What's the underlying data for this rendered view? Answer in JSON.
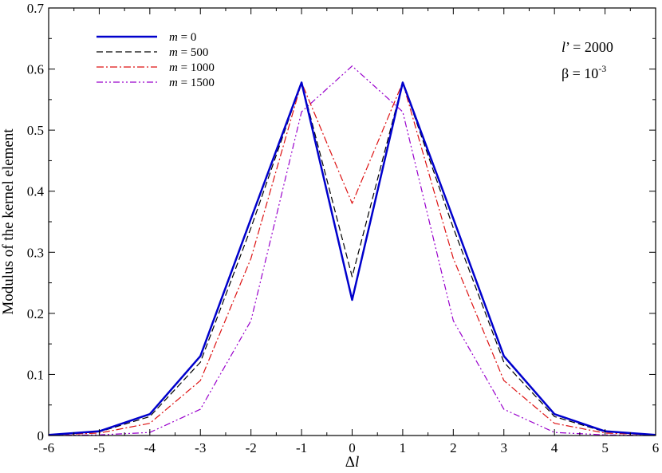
{
  "chart_data": {
    "type": "line",
    "title": "",
    "xlabel_prefix": "Δ",
    "xlabel_italic": "l",
    "ylabel": "Modulus of the kernel element",
    "xlim": [
      -6,
      6
    ],
    "ylim": [
      0,
      0.7
    ],
    "xticks": [
      -6,
      -5,
      -4,
      -3,
      -2,
      -1,
      0,
      1,
      2,
      3,
      4,
      5,
      6
    ],
    "xtick_labels": [
      "-6",
      "-5",
      "-4",
      "-3",
      "-2",
      "-1",
      "0",
      "1",
      "2",
      "3",
      "4",
      "5",
      "6"
    ],
    "yticks": [
      0,
      0.1,
      0.2,
      0.3,
      0.4,
      0.5,
      0.6,
      0.7
    ],
    "ytick_labels": [
      "0",
      "0.1",
      "0.2",
      "0.3",
      "0.4",
      "0.5",
      "0.6",
      "0.7"
    ],
    "grid": false,
    "legend_position": "top-left",
    "annotations": {
      "l_prime": {
        "symbol": "l",
        "rest": "’ = 2000"
      },
      "beta": {
        "base": "β = 10",
        "exponent": "-3"
      }
    },
    "x": [
      -6,
      -5,
      -4,
      -3,
      -2,
      -1,
      0,
      1,
      2,
      3,
      4,
      5,
      6
    ],
    "series": [
      {
        "name": "0",
        "legend_var": "m",
        "legend_eq": " = ",
        "color": "#0000cc",
        "dash": "",
        "width": 2.5,
        "values": [
          0.001,
          0.007,
          0.035,
          0.13,
          0.355,
          0.578,
          0.222,
          0.578,
          0.355,
          0.13,
          0.035,
          0.007,
          0.001
        ]
      },
      {
        "name": "500",
        "legend_var": "m",
        "legend_eq": " = ",
        "color": "#000000",
        "dash": "8,4",
        "width": 1.2,
        "values": [
          0.001,
          0.006,
          0.031,
          0.12,
          0.34,
          0.578,
          0.26,
          0.578,
          0.34,
          0.12,
          0.031,
          0.006,
          0.001
        ]
      },
      {
        "name": "1000",
        "legend_var": "m",
        "legend_eq": " = ",
        "color": "#dd1111",
        "dash": "9,3,2,3",
        "width": 1.2,
        "values": [
          0.001,
          0.004,
          0.02,
          0.09,
          0.29,
          0.578,
          0.38,
          0.578,
          0.29,
          0.09,
          0.02,
          0.004,
          0.001
        ]
      },
      {
        "name": "1500",
        "legend_var": "m",
        "legend_eq": " = ",
        "color": "#9900cc",
        "dash": "8,3,2,3,2,3",
        "width": 1.2,
        "values": [
          0.0,
          0.001,
          0.005,
          0.043,
          0.188,
          0.53,
          0.605,
          0.53,
          0.188,
          0.043,
          0.005,
          0.001,
          0.0
        ]
      }
    ]
  }
}
